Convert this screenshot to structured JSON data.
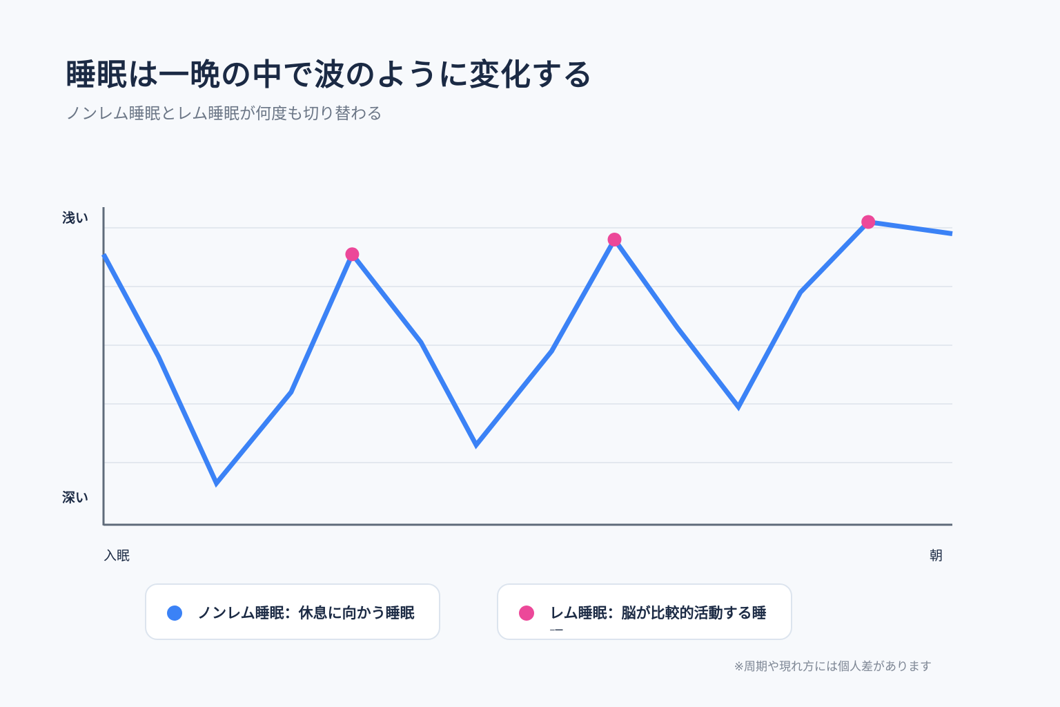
{
  "title": "睡眠は一晩の中で波のように変化する",
  "subtitle": "ノンレム睡眠とレム睡眠が何度も切り替わる",
  "legend": {
    "nonrem": {
      "label": "ノンレム睡眠：休息に向かう睡眠",
      "color": "#3b82f6"
    },
    "rem": {
      "label": "レム睡眠：脳が比較的活動する睡眠",
      "color": "#ec4899"
    }
  },
  "footnote": "※周期や現れ方には個人差があります",
  "chart_data": {
    "type": "line",
    "y_axis_labels": {
      "top": "浅い",
      "bottom": "深い"
    },
    "x_axis_labels": {
      "start": "入眠",
      "end": "朝"
    },
    "xlim": [
      0,
      100
    ],
    "ylim": [
      0,
      100
    ],
    "grid": true,
    "series": [
      {
        "x": [
          0,
          6.5,
          13.3,
          22.1,
          29.3,
          37.4,
          43.9,
          52.8,
          60.2,
          67.6,
          74.8,
          82.1,
          90.1,
          100
        ],
        "values": [
          91,
          56,
          13,
          44,
          91,
          61,
          26,
          58,
          96,
          66,
          39,
          78,
          102,
          98
        ],
        "color": "#3b82f6",
        "rem_point_indices": [
          4,
          8,
          12
        ],
        "rem_color": "#ec4899"
      }
    ]
  }
}
